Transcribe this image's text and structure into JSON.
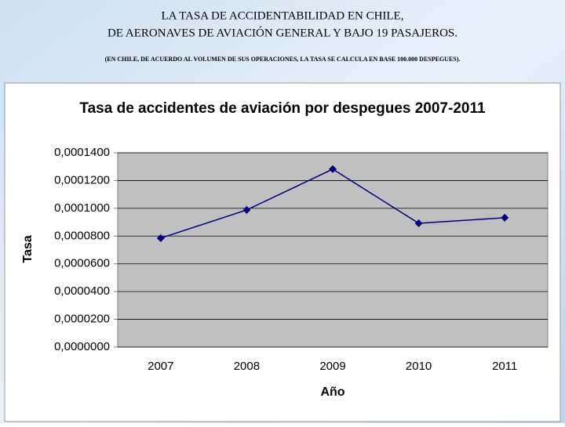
{
  "header": {
    "lines": [
      "LA TASA DE ACCIDENTABILIDAD EN CHILE,",
      "DE AERONAVES DE AVIACIÓN GENERAL Y BAJO 19 PASAJEROS."
    ],
    "note": "(EN CHILE, DE ACUERDO AL VOLUMEN DE SUS OPERACIONES,  LA TASA SE CALCULA EN BASE 100.000 DESPEGUES)."
  },
  "chart_data": {
    "type": "line",
    "title": "Tasa de accidentes de aviación por despegues 2007-2011",
    "x_label": "Año",
    "y_label": "Tasa",
    "categories": [
      "2007",
      "2008",
      "2009",
      "2010",
      "2011"
    ],
    "values": [
      7.85e-05,
      9.88e-05,
      0.0001282,
      8.92e-05,
      9.32e-05
    ],
    "color": "#000080",
    "ylim": [
      0,
      0.00014
    ],
    "yticks": [
      {
        "value": 0,
        "label": "0,0000000"
      },
      {
        "value": 2e-05,
        "label": "0,0000200"
      },
      {
        "value": 4e-05,
        "label": "0,0000400"
      },
      {
        "value": 6e-05,
        "label": "0,0000600"
      },
      {
        "value": 8e-05,
        "label": "0,0000800"
      },
      {
        "value": 0.0001,
        "label": "0,0001000"
      },
      {
        "value": 0.00012,
        "label": "0,0001200"
      },
      {
        "value": 0.00014,
        "label": "0,0001400"
      }
    ],
    "grid": true
  }
}
